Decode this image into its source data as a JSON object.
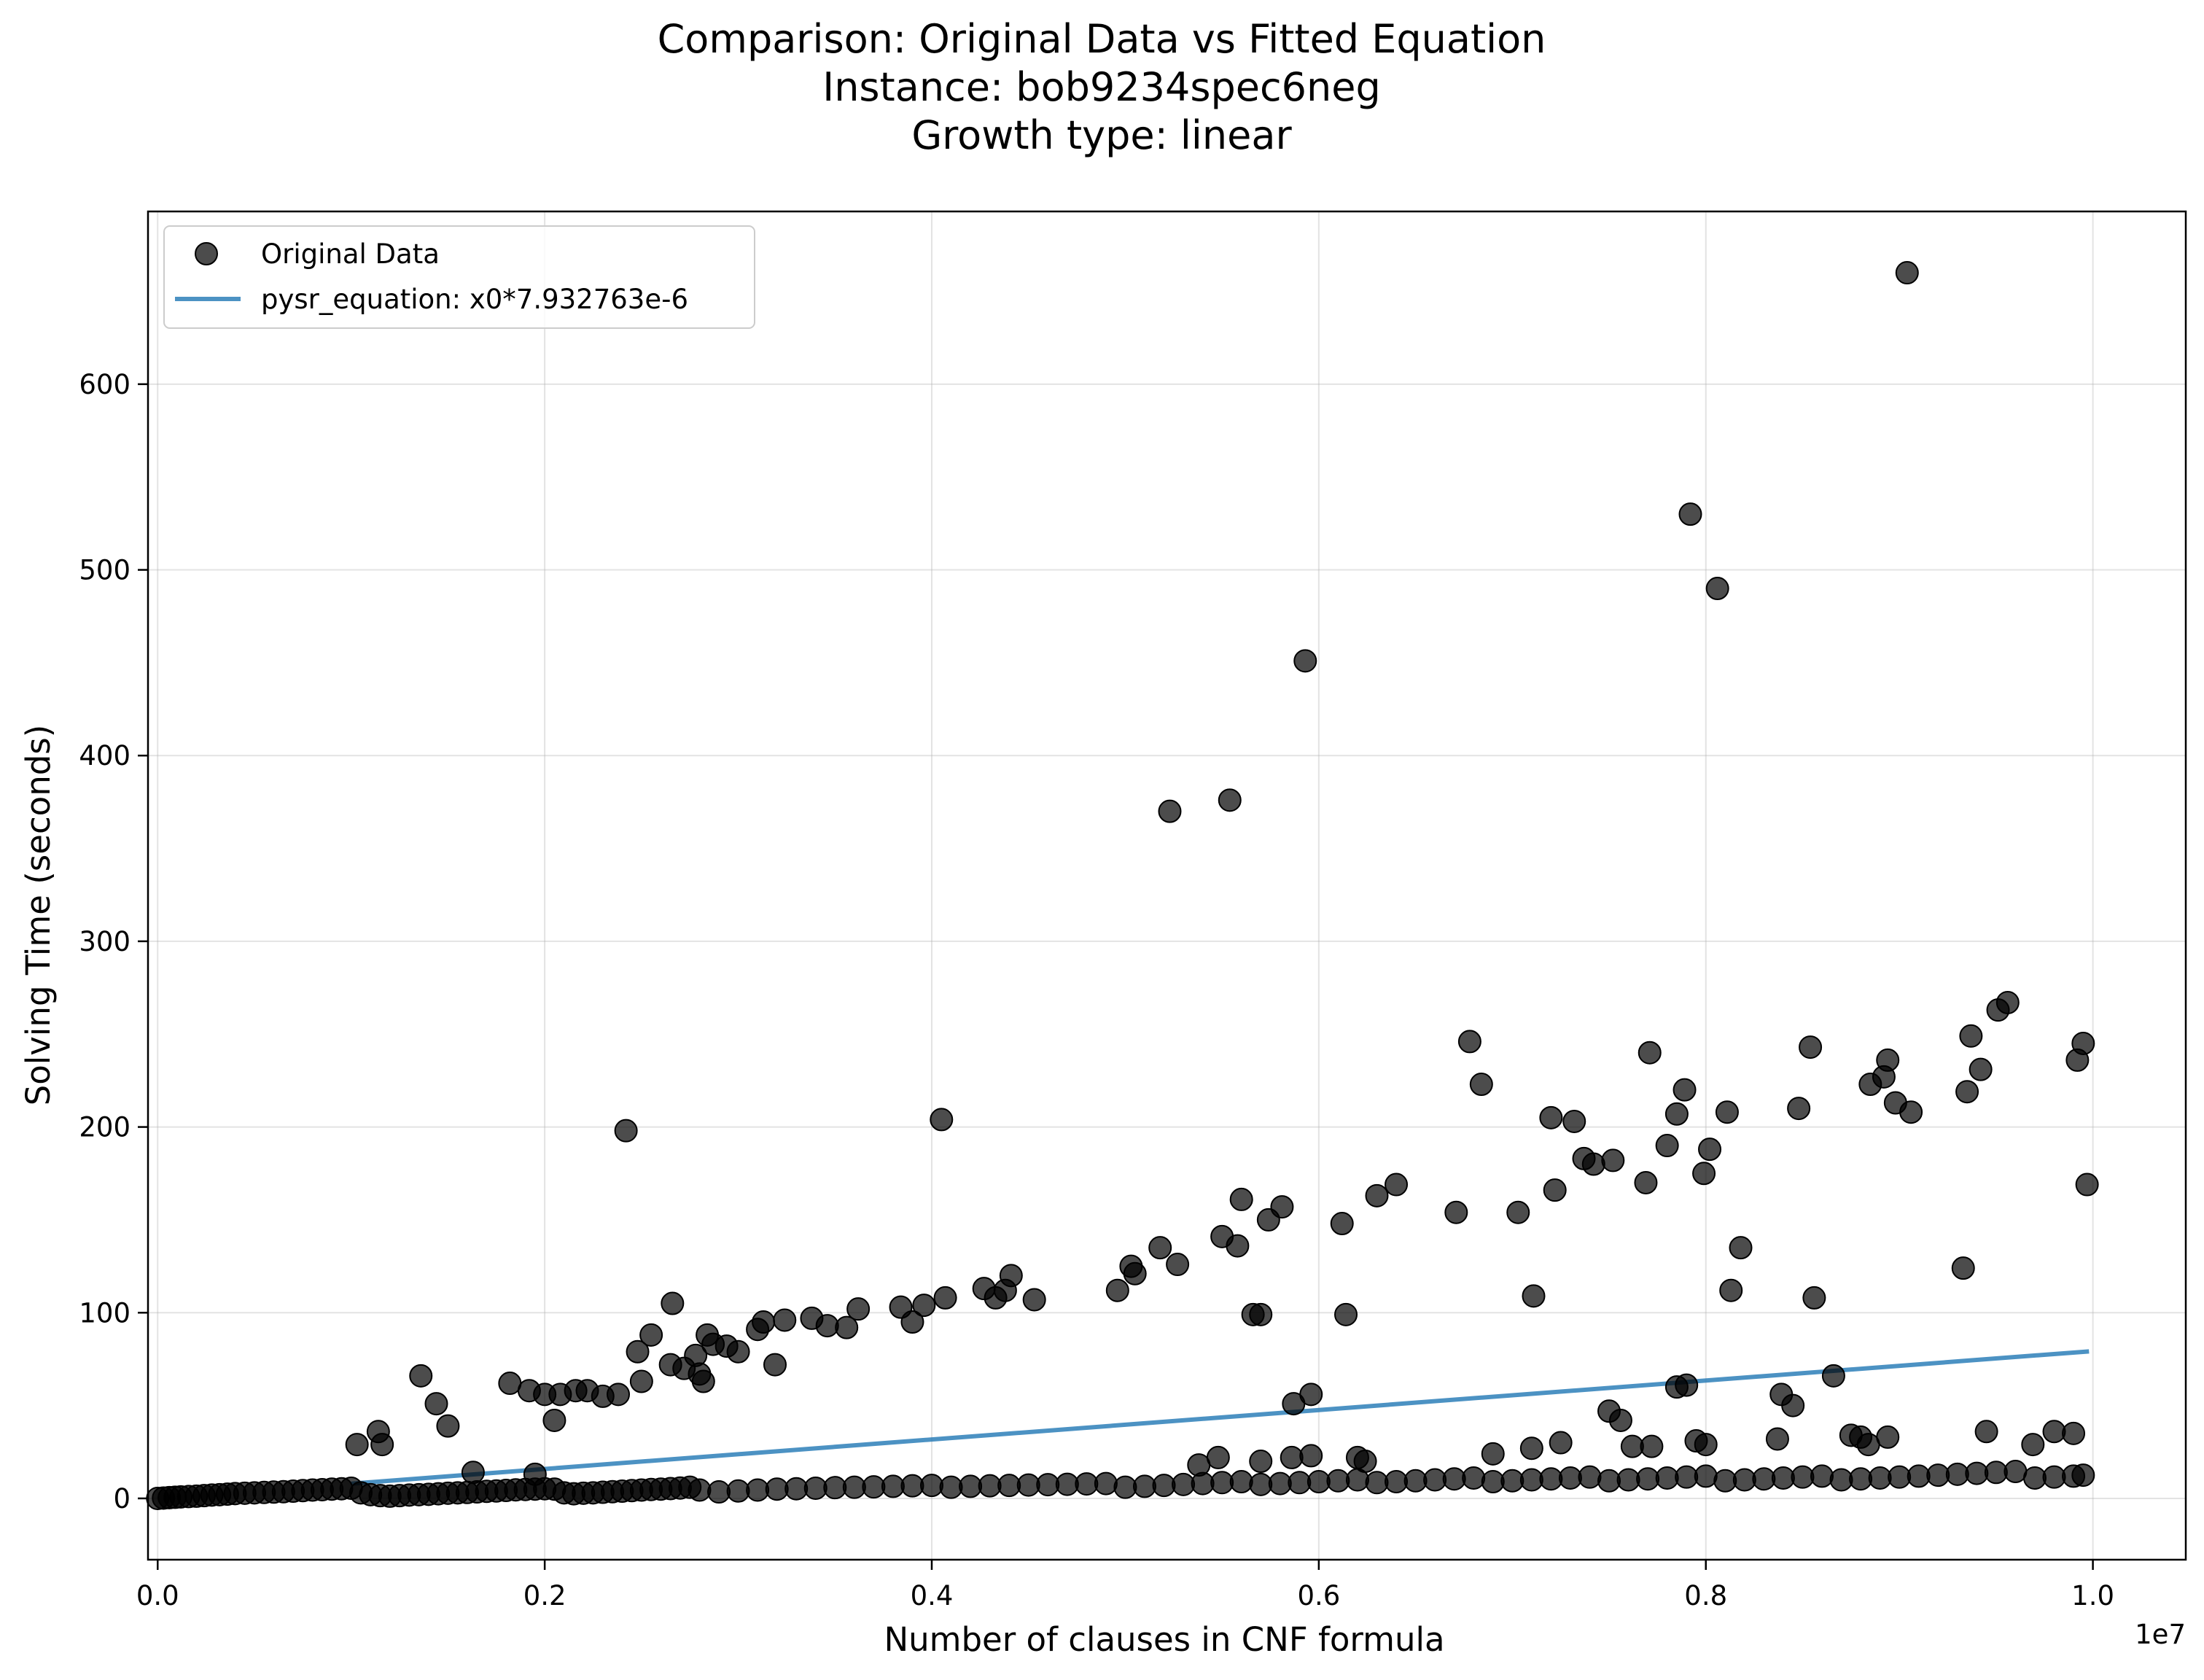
{
  "chart_data": {
    "type": "scatter",
    "title_lines": [
      "Comparison: Original Data vs Fitted Equation",
      "Instance: bob9234spec6neg",
      "Growth type: linear"
    ],
    "xlabel": "Number of clauses in CNF formula",
    "ylabel": "Solving Time (seconds)",
    "x_offset_label": "1e7",
    "x_multiplier": 10000000,
    "xlim": [
      -50000,
      10480000
    ],
    "ylim": [
      -33,
      693
    ],
    "x_ticks": [
      0,
      2000000,
      4000000,
      6000000,
      8000000,
      10000000
    ],
    "x_tick_labels": [
      "0.0",
      "0.2",
      "0.4",
      "0.6",
      "0.8",
      "1.0"
    ],
    "y_ticks": [
      0,
      100,
      200,
      300,
      400,
      500,
      600
    ],
    "y_tick_labels": [
      "0",
      "100",
      "200",
      "300",
      "400",
      "500",
      "600"
    ],
    "grid": true,
    "legend_position": "upper-left",
    "colors": {
      "points": "#000000",
      "line": "#1f77b4"
    },
    "series": [
      {
        "name": "Original Data",
        "type": "scatter",
        "points": [
          [
            0,
            0
          ],
          [
            30000,
            0.2
          ],
          [
            60000,
            0.4
          ],
          [
            90000,
            0.6
          ],
          [
            120000,
            0.8
          ],
          [
            160000,
            1
          ],
          [
            200000,
            1.2
          ],
          [
            240000,
            1.5
          ],
          [
            280000,
            1.8
          ],
          [
            320000,
            2
          ],
          [
            360000,
            2.3
          ],
          [
            400000,
            2.6
          ],
          [
            450000,
            2.8
          ],
          [
            500000,
            3
          ],
          [
            550000,
            3.2
          ],
          [
            600000,
            3.4
          ],
          [
            650000,
            3.6
          ],
          [
            700000,
            3.9
          ],
          [
            750000,
            4.2
          ],
          [
            800000,
            4.5
          ],
          [
            850000,
            4.7
          ],
          [
            900000,
            5
          ],
          [
            950000,
            5.2
          ],
          [
            1000000,
            5.5
          ],
          [
            1050000,
            3
          ],
          [
            1100000,
            2
          ],
          [
            1150000,
            1.5
          ],
          [
            1200000,
            1.2
          ],
          [
            1250000,
            1.5
          ],
          [
            1300000,
            1.8
          ],
          [
            1350000,
            2
          ],
          [
            1400000,
            2.2
          ],
          [
            1450000,
            2.5
          ],
          [
            1500000,
            2.8
          ],
          [
            1550000,
            3
          ],
          [
            1600000,
            3.2
          ],
          [
            1650000,
            3.5
          ],
          [
            1700000,
            3.8
          ],
          [
            1750000,
            4
          ],
          [
            1800000,
            4.3
          ],
          [
            1850000,
            4.6
          ],
          [
            1900000,
            4.8
          ],
          [
            1950000,
            5
          ],
          [
            2000000,
            5.2
          ],
          [
            2050000,
            5
          ],
          [
            2100000,
            3
          ],
          [
            2150000,
            2.5
          ],
          [
            2200000,
            2.8
          ],
          [
            2250000,
            3
          ],
          [
            2300000,
            3.3
          ],
          [
            2350000,
            3.6
          ],
          [
            2400000,
            3.9
          ],
          [
            2450000,
            4.2
          ],
          [
            2500000,
            4.5
          ],
          [
            2550000,
            4.8
          ],
          [
            2600000,
            5
          ],
          [
            2650000,
            5.3
          ],
          [
            2700000,
            5.6
          ],
          [
            2750000,
            6
          ],
          [
            2800000,
            4.5
          ],
          [
            2900000,
            3.5
          ],
          [
            3000000,
            4
          ],
          [
            3100000,
            4.5
          ],
          [
            3200000,
            5
          ],
          [
            3300000,
            5.2
          ],
          [
            3400000,
            5.5
          ],
          [
            3500000,
            5.8
          ],
          [
            3600000,
            6
          ],
          [
            3700000,
            6.2
          ],
          [
            3800000,
            6.5
          ],
          [
            3900000,
            6.8
          ],
          [
            4000000,
            7
          ],
          [
            4100000,
            6
          ],
          [
            4200000,
            6.5
          ],
          [
            4300000,
            6.8
          ],
          [
            4400000,
            7
          ],
          [
            4500000,
            7.2
          ],
          [
            4600000,
            7.4
          ],
          [
            4700000,
            7.6
          ],
          [
            4800000,
            7.8
          ],
          [
            4900000,
            8
          ],
          [
            5000000,
            6
          ],
          [
            5100000,
            6.5
          ],
          [
            5200000,
            7
          ],
          [
            5300000,
            7.5
          ],
          [
            5400000,
            8
          ],
          [
            5500000,
            8.5
          ],
          [
            5600000,
            9
          ],
          [
            5700000,
            7.5
          ],
          [
            5800000,
            8
          ],
          [
            5900000,
            8.5
          ],
          [
            6000000,
            9
          ],
          [
            6100000,
            9.5
          ],
          [
            6200000,
            10
          ],
          [
            6300000,
            8.5
          ],
          [
            6400000,
            9
          ],
          [
            6500000,
            9.5
          ],
          [
            6600000,
            10
          ],
          [
            6700000,
            10.5
          ],
          [
            6800000,
            11
          ],
          [
            6900000,
            9
          ],
          [
            7000000,
            9.5
          ],
          [
            7100000,
            10
          ],
          [
            7200000,
            10.5
          ],
          [
            7300000,
            11
          ],
          [
            7400000,
            11.5
          ],
          [
            7500000,
            9.5
          ],
          [
            7600000,
            10
          ],
          [
            7700000,
            10.5
          ],
          [
            7800000,
            11
          ],
          [
            7900000,
            11.5
          ],
          [
            8000000,
            12
          ],
          [
            8100000,
            9.5
          ],
          [
            8200000,
            10
          ],
          [
            8300000,
            10.5
          ],
          [
            8400000,
            11
          ],
          [
            8500000,
            11.5
          ],
          [
            8600000,
            12
          ],
          [
            8700000,
            10
          ],
          [
            8800000,
            10.5
          ],
          [
            8900000,
            11
          ],
          [
            9000000,
            11.5
          ],
          [
            9100000,
            12
          ],
          [
            9200000,
            12.5
          ],
          [
            9300000,
            13
          ],
          [
            9400000,
            13.5
          ],
          [
            9500000,
            14
          ],
          [
            9600000,
            14.5
          ],
          [
            9700000,
            11
          ],
          [
            9800000,
            11.5
          ],
          [
            9900000,
            12
          ],
          [
            9950000,
            12.5
          ],
          [
            1030000,
            29
          ],
          [
            1140000,
            36
          ],
          [
            1160000,
            29
          ],
          [
            1360000,
            66
          ],
          [
            1440000,
            51
          ],
          [
            1500000,
            39
          ],
          [
            1630000,
            14
          ],
          [
            1820000,
            62
          ],
          [
            1920000,
            58
          ],
          [
            1950000,
            13
          ],
          [
            2000000,
            56
          ],
          [
            2050000,
            42
          ],
          [
            2080000,
            56
          ],
          [
            2160000,
            58
          ],
          [
            2220000,
            58
          ],
          [
            2300000,
            55
          ],
          [
            2380000,
            56
          ],
          [
            2420000,
            198
          ],
          [
            2480000,
            79
          ],
          [
            2500000,
            63
          ],
          [
            2550000,
            88
          ],
          [
            2650000,
            72
          ],
          [
            2660000,
            105
          ],
          [
            2720000,
            70
          ],
          [
            2780000,
            77
          ],
          [
            2800000,
            67
          ],
          [
            2820000,
            63
          ],
          [
            2840000,
            88
          ],
          [
            2870000,
            83
          ],
          [
            2940000,
            82
          ],
          [
            3000000,
            79
          ],
          [
            3100000,
            91
          ],
          [
            3130000,
            95
          ],
          [
            3190000,
            72
          ],
          [
            3240000,
            96
          ],
          [
            3380000,
            97
          ],
          [
            3460000,
            93
          ],
          [
            3560000,
            92
          ],
          [
            3620000,
            102
          ],
          [
            3840000,
            103
          ],
          [
            3900000,
            95
          ],
          [
            3960000,
            104
          ],
          [
            4050000,
            204
          ],
          [
            4070000,
            108
          ],
          [
            4270000,
            113
          ],
          [
            4330000,
            108
          ],
          [
            4380000,
            112
          ],
          [
            4410000,
            120
          ],
          [
            4530000,
            107
          ],
          [
            4960000,
            112
          ],
          [
            5030000,
            125
          ],
          [
            5050000,
            121
          ],
          [
            5180000,
            135
          ],
          [
            5230000,
            370
          ],
          [
            5270000,
            126
          ],
          [
            5500000,
            141
          ],
          [
            5540000,
            376
          ],
          [
            5580000,
            136
          ],
          [
            5600000,
            161
          ],
          [
            5660000,
            99
          ],
          [
            5700000,
            99
          ],
          [
            5740000,
            150
          ],
          [
            5810000,
            157
          ],
          [
            5870000,
            51
          ],
          [
            5930000,
            451
          ],
          [
            5960000,
            56
          ],
          [
            6120000,
            148
          ],
          [
            6140000,
            99
          ],
          [
            6300000,
            163
          ],
          [
            6400000,
            169
          ],
          [
            6710000,
            154
          ],
          [
            6780000,
            246
          ],
          [
            6840000,
            223
          ],
          [
            7030000,
            154
          ],
          [
            7110000,
            109
          ],
          [
            7200000,
            205
          ],
          [
            7220000,
            166
          ],
          [
            7320000,
            203
          ],
          [
            7370000,
            183
          ],
          [
            7420000,
            180
          ],
          [
            7520000,
            182
          ],
          [
            7690000,
            170
          ],
          [
            7710000,
            240
          ],
          [
            7800000,
            190
          ],
          [
            7850000,
            207
          ],
          [
            7890000,
            220
          ],
          [
            7920000,
            530
          ],
          [
            7990000,
            175
          ],
          [
            8020000,
            188
          ],
          [
            8060000,
            490
          ],
          [
            8110000,
            208
          ],
          [
            8130000,
            112
          ],
          [
            8180000,
            135
          ],
          [
            8480000,
            210
          ],
          [
            8540000,
            243
          ],
          [
            8560000,
            108
          ],
          [
            8850000,
            223
          ],
          [
            8920000,
            227
          ],
          [
            8940000,
            236
          ],
          [
            8980000,
            213
          ],
          [
            9040000,
            660
          ],
          [
            9060000,
            208
          ],
          [
            9330000,
            124
          ],
          [
            9350000,
            219
          ],
          [
            9370000,
            249
          ],
          [
            9420000,
            231
          ],
          [
            9510000,
            263
          ],
          [
            9560000,
            267
          ],
          [
            9920000,
            236
          ],
          [
            9950000,
            245
          ],
          [
            9970000,
            169
          ],
          [
            5380000,
            18
          ],
          [
            5480000,
            22
          ],
          [
            5700000,
            20
          ],
          [
            5860000,
            22
          ],
          [
            5960000,
            23
          ],
          [
            6200000,
            22
          ],
          [
            6240000,
            20
          ],
          [
            6900000,
            24
          ],
          [
            7100000,
            27
          ],
          [
            7250000,
            30
          ],
          [
            7500000,
            47
          ],
          [
            7560000,
            42
          ],
          [
            7620000,
            28
          ],
          [
            7720000,
            28
          ],
          [
            7850000,
            60
          ],
          [
            7900000,
            61
          ],
          [
            7950000,
            31
          ],
          [
            8000000,
            29
          ],
          [
            8370000,
            32
          ],
          [
            8390000,
            56
          ],
          [
            8450000,
            50
          ],
          [
            8660000,
            66
          ],
          [
            8750000,
            34
          ],
          [
            8800000,
            33
          ],
          [
            8840000,
            29
          ],
          [
            8940000,
            33
          ],
          [
            9450000,
            36
          ],
          [
            9690000,
            29
          ],
          [
            9800000,
            36
          ],
          [
            9900000,
            35
          ]
        ]
      },
      {
        "name": "pysr_equation: x0*7.932763e-6",
        "type": "line",
        "coefficient": 7.932763e-06,
        "x_range": [
          1000000,
          9980000
        ]
      }
    ]
  }
}
